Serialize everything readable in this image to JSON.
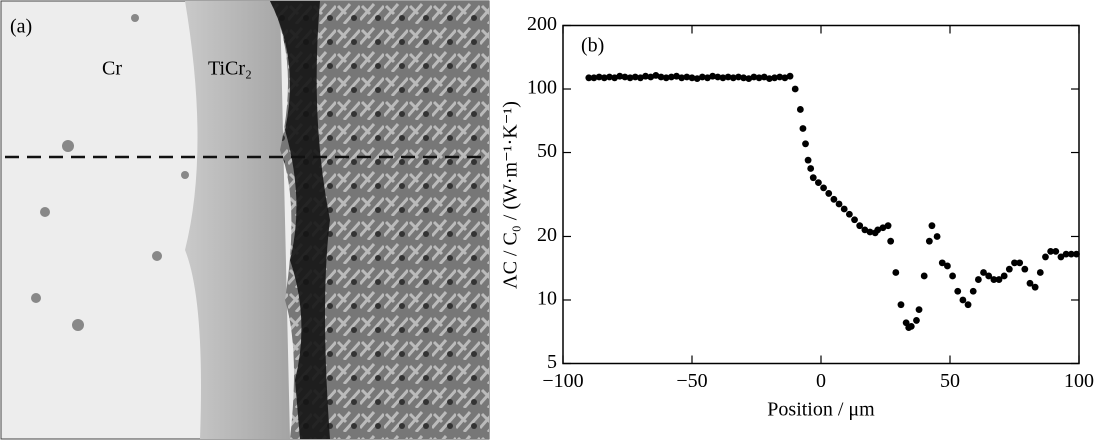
{
  "image": {
    "label": "(a)",
    "annotations": [
      "Cr",
      "TiCr₂"
    ]
  },
  "chart_data": {
    "type": "scatter",
    "panel_label": "(b)",
    "xlabel": "Position / μm",
    "ylabel": "ΛC / C₀ / (W·m⁻¹·K⁻¹)",
    "xlim": [
      -100,
      100
    ],
    "xticks": [
      {
        "value": -100,
        "label": "−100"
      },
      {
        "value": -50,
        "label": "−50"
      },
      0,
      50,
      100
    ],
    "ylim": [
      5,
      200
    ],
    "yticks": [
      5,
      10,
      20,
      50,
      100,
      200
    ],
    "ylog": true,
    "color": "#000000",
    "x": [
      -90,
      -88,
      -86,
      -84,
      -82,
      -80,
      -78,
      -76,
      -74,
      -72,
      -70,
      -68,
      -66,
      -64,
      -62,
      -60,
      -58,
      -56,
      -54,
      -52,
      -50,
      -48,
      -46,
      -44,
      -42,
      -40,
      -38,
      -36,
      -34,
      -32,
      -30,
      -28,
      -26,
      -24,
      -22,
      -20,
      -18,
      -16,
      -14,
      -12,
      -10,
      -8,
      -7,
      -6,
      -5,
      -4,
      -3,
      -1,
      1,
      3,
      5,
      7,
      9,
      11,
      13,
      15,
      17,
      19,
      21,
      22,
      24,
      26,
      27,
      29,
      31,
      33,
      34,
      35,
      37,
      38,
      40,
      42,
      43,
      45,
      47,
      49,
      51,
      53,
      55,
      57,
      59,
      61,
      63,
      65,
      67,
      69,
      71,
      73,
      75,
      77,
      79,
      81,
      83,
      85,
      87,
      89,
      91,
      93,
      95,
      97,
      99
    ],
    "values": [
      113,
      113,
      114,
      113,
      114,
      113,
      115,
      114,
      113,
      114,
      113,
      115,
      114,
      116,
      114,
      113,
      114,
      115,
      113,
      114,
      113,
      112,
      114,
      113,
      115,
      114,
      113,
      114,
      113,
      114,
      113,
      112,
      114,
      113,
      114,
      112,
      113,
      114,
      113,
      115,
      100,
      80,
      65,
      55,
      46,
      42,
      38,
      36,
      34,
      32,
      30,
      28.5,
      27,
      25.5,
      24,
      22.5,
      21.5,
      21,
      20.8,
      21.5,
      22,
      22.5,
      19,
      13.5,
      9.5,
      7.8,
      7.4,
      7.5,
      8,
      9,
      13,
      19,
      22.5,
      20,
      15,
      14.5,
      13,
      11,
      10,
      9.5,
      11,
      12.5,
      13.5,
      13,
      12.5,
      12.5,
      13,
      14,
      15,
      15,
      14,
      12,
      11.5,
      13.5,
      16,
      17,
      17,
      16,
      16.5,
      16.5,
      16.5
    ]
  }
}
